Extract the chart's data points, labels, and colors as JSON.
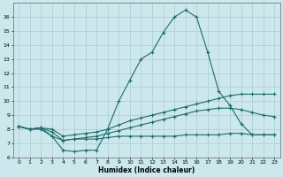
{
  "xlabel": "Humidex (Indice chaleur)",
  "background_color": "#cce8ec",
  "grid_color": "#aaccd4",
  "line_color": "#1e6b6b",
  "xlim": [
    -0.5,
    23.5
  ],
  "ylim": [
    6,
    17
  ],
  "yticks": [
    6,
    7,
    8,
    9,
    10,
    11,
    12,
    13,
    14,
    15,
    16
  ],
  "xticks": [
    0,
    1,
    2,
    3,
    4,
    5,
    6,
    7,
    8,
    9,
    10,
    11,
    12,
    13,
    14,
    15,
    16,
    17,
    18,
    19,
    20,
    21,
    22,
    23
  ],
  "line1_x": [
    0,
    1,
    2,
    3,
    4,
    5,
    6,
    7,
    8,
    9,
    10,
    11,
    12,
    13,
    14,
    15,
    16,
    17,
    18,
    19,
    20,
    21,
    22,
    23
  ],
  "line1_y": [
    8.2,
    8.0,
    8.1,
    7.5,
    6.5,
    6.4,
    6.5,
    6.5,
    8.0,
    10.0,
    11.5,
    13.0,
    13.5,
    14.9,
    16.0,
    16.5,
    16.0,
    13.5,
    10.7,
    9.7,
    8.4,
    7.6,
    7.6,
    7.6
  ],
  "line2_x": [
    0,
    1,
    2,
    3,
    4,
    5,
    6,
    7,
    8,
    9,
    10,
    11,
    12,
    13,
    14,
    15,
    16,
    17,
    18,
    19,
    20,
    21,
    22,
    23
  ],
  "line2_y": [
    8.2,
    8.0,
    8.1,
    8.0,
    7.5,
    7.6,
    7.7,
    7.8,
    8.0,
    8.3,
    8.6,
    8.8,
    9.0,
    9.2,
    9.4,
    9.6,
    9.8,
    10.0,
    10.2,
    10.4,
    10.5,
    10.5,
    10.5,
    10.5
  ],
  "line3_x": [
    0,
    1,
    2,
    3,
    4,
    5,
    6,
    7,
    8,
    9,
    10,
    11,
    12,
    13,
    14,
    15,
    16,
    17,
    18,
    19,
    20,
    21,
    22,
    23
  ],
  "line3_y": [
    8.2,
    8.0,
    8.1,
    7.8,
    7.2,
    7.3,
    7.4,
    7.5,
    7.7,
    7.9,
    8.1,
    8.3,
    8.5,
    8.7,
    8.9,
    9.1,
    9.3,
    9.4,
    9.5,
    9.5,
    9.4,
    9.2,
    9.0,
    8.9
  ],
  "line4_x": [
    0,
    1,
    2,
    3,
    4,
    5,
    6,
    7,
    8,
    9,
    10,
    11,
    12,
    13,
    14,
    15,
    16,
    17,
    18,
    19,
    20,
    21,
    22,
    23
  ],
  "line4_y": [
    8.2,
    8.0,
    8.0,
    7.5,
    7.2,
    7.3,
    7.3,
    7.3,
    7.4,
    7.5,
    7.5,
    7.5,
    7.5,
    7.5,
    7.5,
    7.6,
    7.6,
    7.6,
    7.6,
    7.7,
    7.7,
    7.6,
    7.6,
    7.6
  ]
}
